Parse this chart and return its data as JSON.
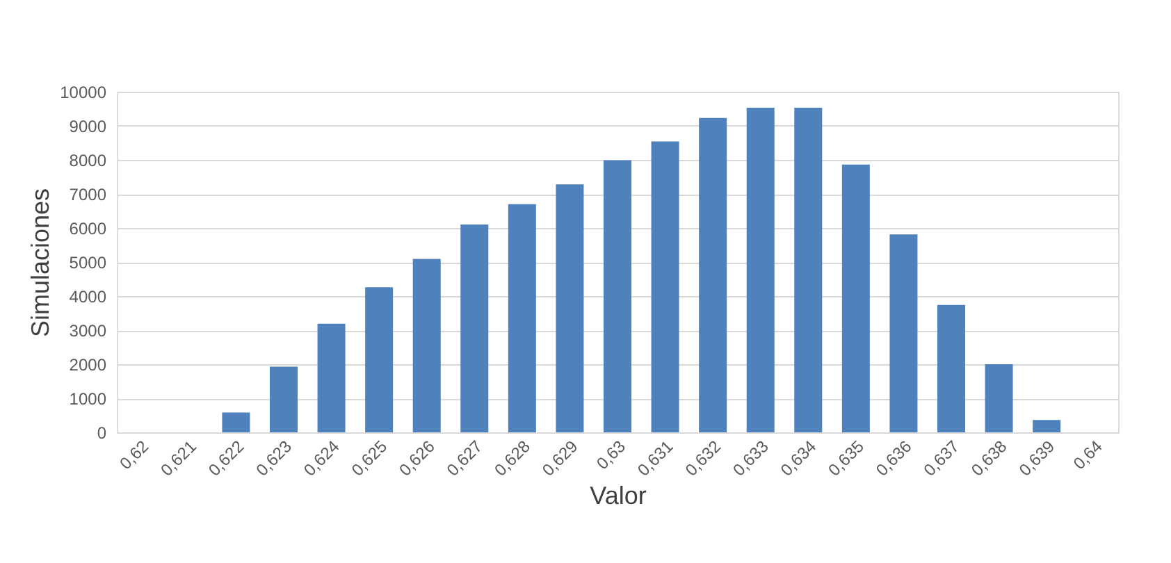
{
  "chart_data": {
    "type": "bar",
    "xlabel": "Valor",
    "ylabel": "Simulaciones",
    "categories": [
      "0,62",
      "0,621",
      "0,622",
      "0,623",
      "0,624",
      "0,625",
      "0,626",
      "0,627",
      "0,628",
      "0,629",
      "0,63",
      "0,631",
      "0,632",
      "0,633",
      "0,634",
      "0,635",
      "0,636",
      "0,637",
      "0,638",
      "0,639",
      "0,64"
    ],
    "values": [
      0,
      0,
      580,
      1930,
      3190,
      4260,
      5090,
      6100,
      6700,
      7280,
      7990,
      8540,
      9230,
      9530,
      9530,
      7860,
      5810,
      3740,
      2000,
      360,
      0
    ],
    "color": "#4f81bd",
    "ylim": [
      0,
      10000
    ],
    "yticks": [
      0,
      1000,
      2000,
      3000,
      4000,
      5000,
      6000,
      7000,
      8000,
      9000,
      10000
    ],
    "grid": "y"
  }
}
